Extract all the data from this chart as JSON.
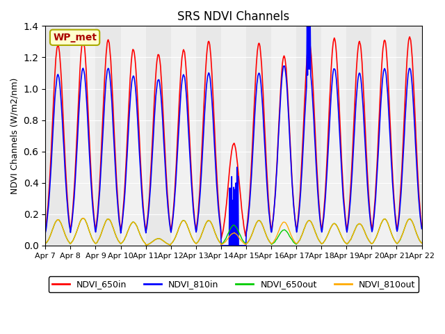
{
  "title": "SRS NDVI Channels",
  "ylabel": "NDVI Channels (W/m2/nm)",
  "station_label": "WP_met",
  "ylim": [
    0,
    1.4
  ],
  "background_color": "#ffffff",
  "plot_bg_color": "#e8e8e8",
  "legend_entries": [
    "NDVI_650in",
    "NDVI_810in",
    "NDVI_650out",
    "NDVI_810out"
  ],
  "legend_colors": [
    "#ff0000",
    "#0000ff",
    "#00cc00",
    "#ffaa00"
  ],
  "x_tick_labels": [
    "Apr 7",
    "Apr 8",
    "Apr 9",
    "Apr 10",
    "Apr 11",
    "Apr 12",
    "Apr 13",
    "Apr 14",
    "Apr 15",
    "Apr 16",
    "Apr 17",
    "Apr 18",
    "Apr 19",
    "Apr 20",
    "Apr 21",
    "Apr 22"
  ],
  "num_days": 15,
  "points_per_day": 48,
  "daily_peaks_650in": [
    1.28,
    1.31,
    1.31,
    1.25,
    1.22,
    1.25,
    1.3,
    0.65,
    1.29,
    1.21,
    1.3,
    1.32,
    1.3,
    1.31,
    1.33
  ],
  "daily_peaks_810in": [
    1.09,
    1.13,
    1.13,
    1.08,
    1.06,
    1.09,
    1.1,
    0.45,
    1.1,
    1.15,
    1.13,
    1.13,
    1.1,
    1.13,
    1.13
  ],
  "daily_peaks_650out": [
    0.165,
    0.175,
    0.17,
    0.15,
    0.15,
    0.16,
    0.16,
    0.13,
    0.16,
    0.1,
    0.16,
    0.14,
    0.14,
    0.17,
    0.17
  ],
  "daily_peaks_810out": [
    0.165,
    0.175,
    0.17,
    0.15,
    0.15,
    0.16,
    0.16,
    0.08,
    0.16,
    0.15,
    0.16,
    0.14,
    0.14,
    0.17,
    0.17
  ],
  "lw_in": 1.2,
  "lw_out": 1.0
}
